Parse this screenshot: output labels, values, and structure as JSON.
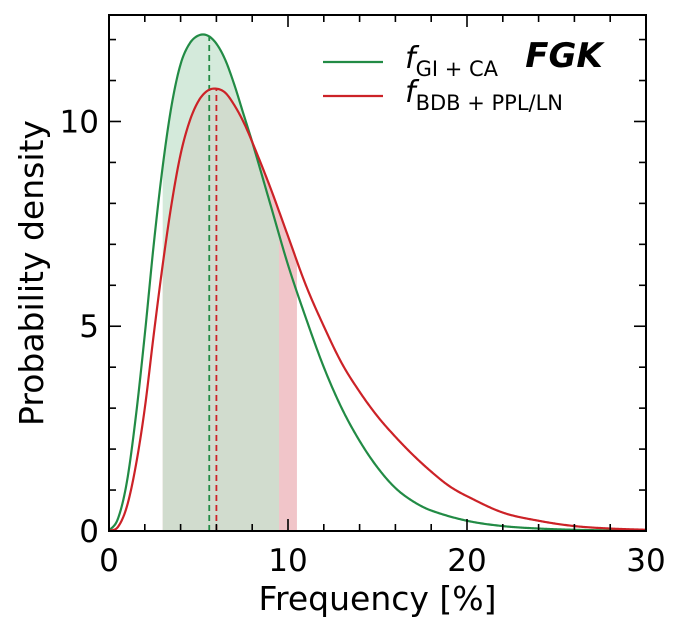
{
  "chart_data": {
    "type": "line",
    "panel_tag": "FGK",
    "xlabel": "Frequency [%]",
    "ylabel": "Probability density",
    "xlim": [
      0,
      30
    ],
    "ylim": [
      0,
      12.6
    ],
    "xticks": [
      0,
      10,
      20,
      30
    ],
    "yticks": [
      0,
      5,
      10
    ],
    "xtick_labels": [
      "0",
      "10",
      "20",
      "30"
    ],
    "ytick_labels": [
      "0",
      "5",
      "10"
    ],
    "legend_position": "top-right",
    "series": [
      {
        "name": "f_GI+CA",
        "label_main": "f",
        "label_sub": "GI + CA",
        "color": "#228b45",
        "fill_color": "#c6e3cf",
        "peak_x": 5.6,
        "peak_y": 12.1,
        "interval": [
          3.0,
          9.5
        ],
        "x": [
          0,
          0.5,
          1,
          1.5,
          2,
          2.5,
          3,
          3.5,
          4,
          4.5,
          5,
          5.5,
          6,
          6.5,
          7,
          7.5,
          8,
          9,
          10,
          11,
          12,
          13,
          14,
          15,
          16,
          17,
          18,
          20,
          22,
          24,
          26,
          28,
          30
        ],
        "y": [
          0,
          0.3,
          1.2,
          2.8,
          4.8,
          7.0,
          8.9,
          10.4,
          11.4,
          11.9,
          12.1,
          12.1,
          11.9,
          11.5,
          10.9,
          10.2,
          9.5,
          8.0,
          6.5,
          5.2,
          4.0,
          3.0,
          2.2,
          1.55,
          1.05,
          0.72,
          0.5,
          0.25,
          0.12,
          0.06,
          0.03,
          0.015,
          0.01
        ]
      },
      {
        "name": "f_BDB+PPL/LN",
        "label_main": "f",
        "label_sub": "BDB + PPL/LN",
        "color": "#cc2227",
        "fill_color": "#f0c2c6",
        "peak_x": 6.0,
        "peak_y": 10.8,
        "interval": [
          3.0,
          10.5
        ],
        "x": [
          0,
          0.5,
          1,
          1.5,
          2,
          2.5,
          3,
          3.5,
          4,
          4.5,
          5,
          5.5,
          6,
          6.5,
          7,
          7.5,
          8,
          9,
          10,
          11,
          12,
          13,
          14,
          15,
          16,
          17,
          18,
          19,
          20,
          22,
          24,
          26,
          28,
          30
        ],
        "y": [
          0,
          0.1,
          0.6,
          1.6,
          3.0,
          4.8,
          6.5,
          8.0,
          9.2,
          10.0,
          10.5,
          10.75,
          10.8,
          10.7,
          10.4,
          10.0,
          9.5,
          8.4,
          7.2,
          6.0,
          5.0,
          4.1,
          3.4,
          2.8,
          2.3,
          1.85,
          1.45,
          1.1,
          0.85,
          0.45,
          0.25,
          0.12,
          0.06,
          0.03
        ]
      }
    ]
  }
}
